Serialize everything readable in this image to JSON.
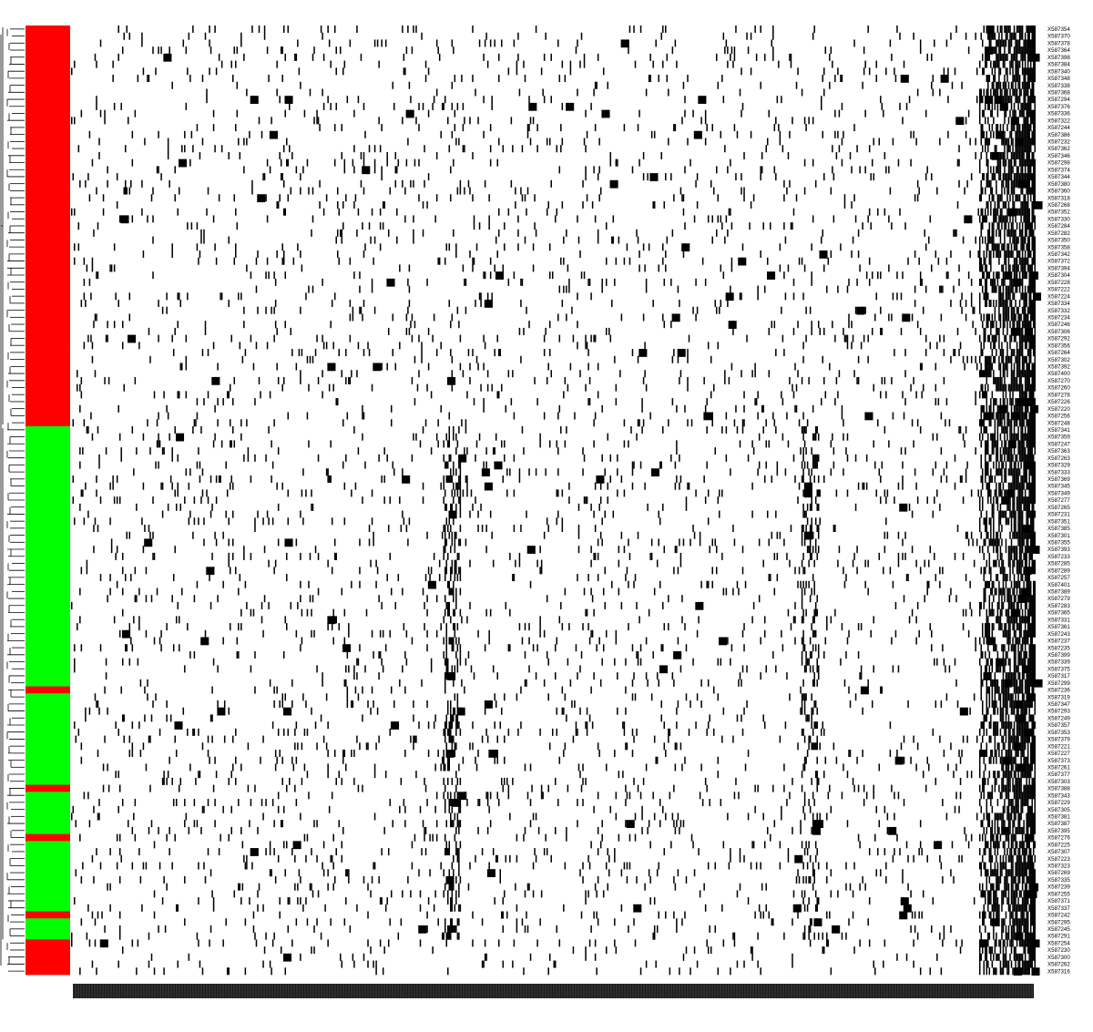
{
  "chart_data": {
    "type": "heatmap",
    "title": "",
    "xlabel": "",
    "ylabel": "",
    "colors": {
      "background": "#ffffff",
      "cell_present": "#000000",
      "group_a": "#ff0000",
      "group_b": "#00ff00",
      "dendrogram": "#000000"
    },
    "rows": [
      {
        "label": "X587354",
        "group": "red"
      },
      {
        "label": "X587370",
        "group": "red"
      },
      {
        "label": "X587378",
        "group": "red"
      },
      {
        "label": "X587364",
        "group": "red"
      },
      {
        "label": "X587398",
        "group": "red"
      },
      {
        "label": "X587384",
        "group": "red"
      },
      {
        "label": "X587340",
        "group": "red"
      },
      {
        "label": "X587348",
        "group": "red"
      },
      {
        "label": "X587338",
        "group": "red"
      },
      {
        "label": "X587368",
        "group": "red"
      },
      {
        "label": "X587294",
        "group": "red"
      },
      {
        "label": "X587376",
        "group": "red"
      },
      {
        "label": "X587336",
        "group": "red"
      },
      {
        "label": "X587322",
        "group": "red"
      },
      {
        "label": "X587244",
        "group": "red"
      },
      {
        "label": "X587386",
        "group": "red"
      },
      {
        "label": "X587232",
        "group": "red"
      },
      {
        "label": "X587362",
        "group": "red"
      },
      {
        "label": "X587346",
        "group": "red"
      },
      {
        "label": "X587298",
        "group": "red"
      },
      {
        "label": "X587374",
        "group": "red"
      },
      {
        "label": "X587344",
        "group": "red"
      },
      {
        "label": "X587380",
        "group": "red"
      },
      {
        "label": "X587360",
        "group": "red"
      },
      {
        "label": "X587318",
        "group": "red"
      },
      {
        "label": "X587268",
        "group": "red"
      },
      {
        "label": "X587352",
        "group": "red"
      },
      {
        "label": "X587330",
        "group": "red"
      },
      {
        "label": "X587284",
        "group": "red"
      },
      {
        "label": "X587282",
        "group": "red"
      },
      {
        "label": "X587350",
        "group": "red"
      },
      {
        "label": "X587358",
        "group": "red"
      },
      {
        "label": "X587342",
        "group": "red"
      },
      {
        "label": "X587372",
        "group": "red"
      },
      {
        "label": "X587394",
        "group": "red"
      },
      {
        "label": "X587304",
        "group": "red"
      },
      {
        "label": "X587228",
        "group": "red"
      },
      {
        "label": "X587222",
        "group": "red"
      },
      {
        "label": "X587224",
        "group": "red"
      },
      {
        "label": "X587334",
        "group": "red"
      },
      {
        "label": "X587332",
        "group": "red"
      },
      {
        "label": "X587234",
        "group": "red"
      },
      {
        "label": "X587246",
        "group": "red"
      },
      {
        "label": "X587306",
        "group": "red"
      },
      {
        "label": "X587292",
        "group": "red"
      },
      {
        "label": "X587356",
        "group": "red"
      },
      {
        "label": "X587264",
        "group": "red"
      },
      {
        "label": "X587302",
        "group": "red"
      },
      {
        "label": "X587392",
        "group": "red"
      },
      {
        "label": "X587400",
        "group": "red"
      },
      {
        "label": "X587270",
        "group": "red"
      },
      {
        "label": "X587260",
        "group": "red"
      },
      {
        "label": "X587278",
        "group": "red"
      },
      {
        "label": "X587226",
        "group": "red"
      },
      {
        "label": "X587220",
        "group": "red"
      },
      {
        "label": "X587256",
        "group": "red"
      },
      {
        "label": "X587248",
        "group": "red"
      },
      {
        "label": "X587341",
        "group": "green"
      },
      {
        "label": "X587359",
        "group": "green"
      },
      {
        "label": "X587247",
        "group": "green"
      },
      {
        "label": "X587363",
        "group": "green"
      },
      {
        "label": "X587263",
        "group": "green"
      },
      {
        "label": "X587329",
        "group": "green"
      },
      {
        "label": "X587333",
        "group": "green"
      },
      {
        "label": "X587369",
        "group": "green"
      },
      {
        "label": "X587345",
        "group": "green"
      },
      {
        "label": "X587349",
        "group": "green"
      },
      {
        "label": "X587277",
        "group": "green"
      },
      {
        "label": "X587265",
        "group": "green"
      },
      {
        "label": "X587231",
        "group": "green"
      },
      {
        "label": "X587351",
        "group": "green"
      },
      {
        "label": "X587385",
        "group": "green"
      },
      {
        "label": "X587301",
        "group": "green"
      },
      {
        "label": "X587355",
        "group": "green"
      },
      {
        "label": "X587393",
        "group": "green"
      },
      {
        "label": "X587233",
        "group": "green"
      },
      {
        "label": "X587285",
        "group": "green"
      },
      {
        "label": "X587289",
        "group": "green"
      },
      {
        "label": "X587257",
        "group": "green"
      },
      {
        "label": "X587401",
        "group": "green"
      },
      {
        "label": "X587389",
        "group": "green"
      },
      {
        "label": "X587279",
        "group": "green"
      },
      {
        "label": "X587283",
        "group": "green"
      },
      {
        "label": "X587365",
        "group": "green"
      },
      {
        "label": "X587331",
        "group": "green"
      },
      {
        "label": "X587361",
        "group": "green"
      },
      {
        "label": "X587243",
        "group": "green"
      },
      {
        "label": "X587237",
        "group": "green"
      },
      {
        "label": "X587235",
        "group": "green"
      },
      {
        "label": "X587399",
        "group": "green"
      },
      {
        "label": "X587339",
        "group": "green"
      },
      {
        "label": "X587375",
        "group": "green"
      },
      {
        "label": "X587317",
        "group": "green"
      },
      {
        "label": "X587299",
        "group": "green"
      },
      {
        "label": "X587236",
        "group": "red"
      },
      {
        "label": "X587319",
        "group": "green"
      },
      {
        "label": "X587347",
        "group": "green"
      },
      {
        "label": "X587293",
        "group": "green"
      },
      {
        "label": "X587249",
        "group": "green"
      },
      {
        "label": "X587357",
        "group": "green"
      },
      {
        "label": "X587353",
        "group": "green"
      },
      {
        "label": "X587379",
        "group": "green"
      },
      {
        "label": "X587221",
        "group": "green"
      },
      {
        "label": "X587227",
        "group": "green"
      },
      {
        "label": "X587373",
        "group": "green"
      },
      {
        "label": "X587261",
        "group": "green"
      },
      {
        "label": "X587377",
        "group": "green"
      },
      {
        "label": "X587303",
        "group": "green"
      },
      {
        "label": "X587388",
        "group": "red"
      },
      {
        "label": "X587343",
        "group": "green"
      },
      {
        "label": "X587229",
        "group": "green"
      },
      {
        "label": "X587305",
        "group": "green"
      },
      {
        "label": "X587381",
        "group": "green"
      },
      {
        "label": "X587387",
        "group": "green"
      },
      {
        "label": "X587395",
        "group": "green"
      },
      {
        "label": "X587276",
        "group": "red"
      },
      {
        "label": "X587225",
        "group": "green"
      },
      {
        "label": "X587307",
        "group": "green"
      },
      {
        "label": "X587223",
        "group": "green"
      },
      {
        "label": "X587323",
        "group": "green"
      },
      {
        "label": "X587269",
        "group": "green"
      },
      {
        "label": "X587335",
        "group": "green"
      },
      {
        "label": "X587239",
        "group": "green"
      },
      {
        "label": "X587255",
        "group": "green"
      },
      {
        "label": "X587371",
        "group": "green"
      },
      {
        "label": "X587337",
        "group": "green"
      },
      {
        "label": "X587242",
        "group": "red"
      },
      {
        "label": "X587295",
        "group": "green"
      },
      {
        "label": "X587245",
        "group": "green"
      },
      {
        "label": "X587291",
        "group": "green"
      },
      {
        "label": "X587254",
        "group": "red"
      },
      {
        "label": "X587230",
        "group": "red"
      },
      {
        "label": "X587300",
        "group": "red"
      },
      {
        "label": "X587262",
        "group": "red"
      },
      {
        "label": "X587316",
        "group": "red"
      }
    ],
    "columns_count": 700,
    "grid": false
  }
}
